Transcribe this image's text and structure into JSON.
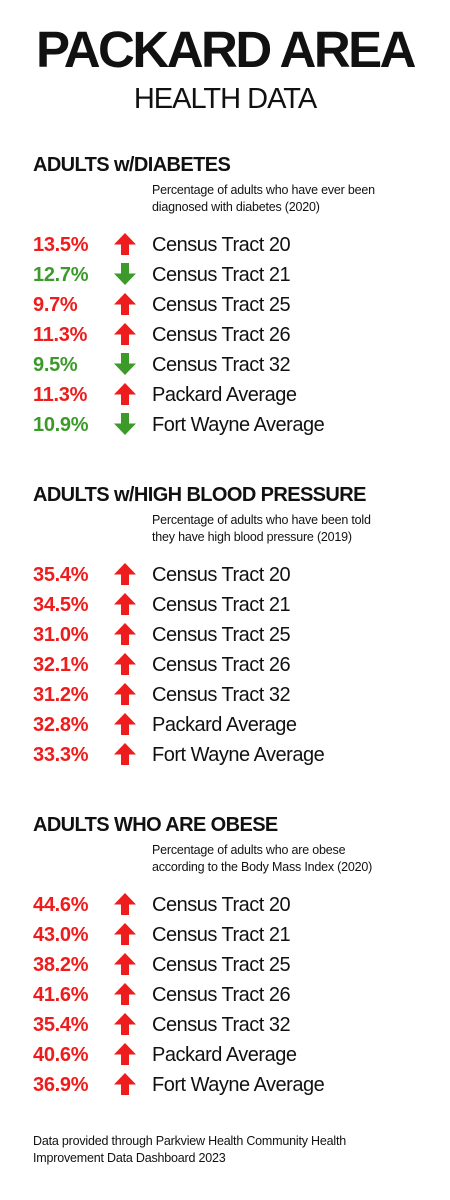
{
  "header": {
    "title": "PACKARD AREA",
    "subtitle": "HEALTH DATA"
  },
  "colors": {
    "up": "#ee1c1c",
    "down": "#3c9a2a"
  },
  "icons": {
    "up": "up-arrow-icon",
    "down": "down-arrow-icon"
  },
  "sections": [
    {
      "heading": "ADULTS w/DIABETES",
      "note_line1": "Percentage of adults who have ever been",
      "note_line2": "diagnosed with diabetes (2020)",
      "rows": [
        {
          "value": "13.5%",
          "trend": "up",
          "label": "Census Tract 20"
        },
        {
          "value": "12.7%",
          "trend": "down",
          "label": "Census Tract 21"
        },
        {
          "value": "9.7%",
          "trend": "up",
          "label": "Census Tract 25"
        },
        {
          "value": "11.3%",
          "trend": "up",
          "label": "Census Tract 26"
        },
        {
          "value": "9.5%",
          "trend": "down",
          "label": "Census Tract 32"
        },
        {
          "value": "11.3%",
          "trend": "up",
          "label": "Packard Average"
        },
        {
          "value": "10.9%",
          "trend": "down",
          "label": "Fort Wayne Average"
        }
      ]
    },
    {
      "heading": "ADULTS w/HIGH BLOOD PRESSURE",
      "note_line1": "Percentage of adults who have been told",
      "note_line2": "they have high blood pressure (2019)",
      "rows": [
        {
          "value": "35.4%",
          "trend": "up",
          "label": "Census Tract 20"
        },
        {
          "value": "34.5%",
          "trend": "up",
          "label": "Census Tract 21"
        },
        {
          "value": "31.0%",
          "trend": "up",
          "label": "Census Tract 25"
        },
        {
          "value": "32.1%",
          "trend": "up",
          "label": "Census Tract 26"
        },
        {
          "value": "31.2%",
          "trend": "up",
          "label": "Census Tract 32"
        },
        {
          "value": "32.8%",
          "trend": "up",
          "label": "Packard Average"
        },
        {
          "value": "33.3%",
          "trend": "up",
          "label": "Fort Wayne Average"
        }
      ]
    },
    {
      "heading": "ADULTS WHO ARE OBESE",
      "note_line1": "Percentage of adults who are obese",
      "note_line2": "according to the Body Mass Index (2020)",
      "rows": [
        {
          "value": "44.6%",
          "trend": "up",
          "label": "Census Tract 20"
        },
        {
          "value": "43.0%",
          "trend": "up",
          "label": "Census Tract 21"
        },
        {
          "value": "38.2%",
          "trend": "up",
          "label": "Census Tract 25"
        },
        {
          "value": "41.6%",
          "trend": "up",
          "label": "Census Tract 26"
        },
        {
          "value": "35.4%",
          "trend": "up",
          "label": "Census Tract 32"
        },
        {
          "value": "40.6%",
          "trend": "up",
          "label": "Packard Average"
        },
        {
          "value": "36.9%",
          "trend": "up",
          "label": "Fort Wayne Average"
        }
      ]
    }
  ],
  "footer": {
    "line1": "Data provided through Parkview Health Community Health",
    "line2": "Improvement Data Dashboard 2023"
  }
}
